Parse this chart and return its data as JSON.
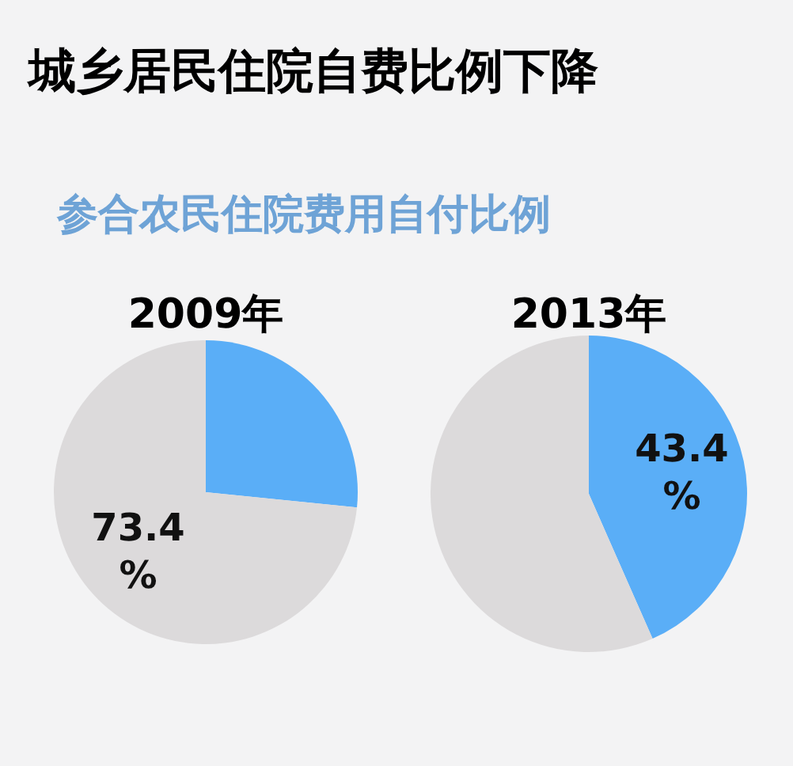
{
  "chart_data": [
    {
      "type": "other",
      "title": "城乡居民住院自费比例下降",
      "subtitle": "参合农民住院费用自付比例"
    },
    {
      "type": "pie",
      "title": "2009年",
      "categories": [
        null,
        null
      ],
      "values": [
        26.6,
        73.4
      ],
      "colors": [
        "#5aaef7",
        "#dcdadb"
      ],
      "value_labels": [
        null,
        "73.4%"
      ]
    },
    {
      "type": "pie",
      "title": "2013年",
      "categories": [
        null,
        null
      ],
      "values": [
        43.4,
        56.6
      ],
      "colors": [
        "#5aaef7",
        "#dcdadb"
      ],
      "value_labels": [
        "43.4%",
        null
      ]
    }
  ]
}
